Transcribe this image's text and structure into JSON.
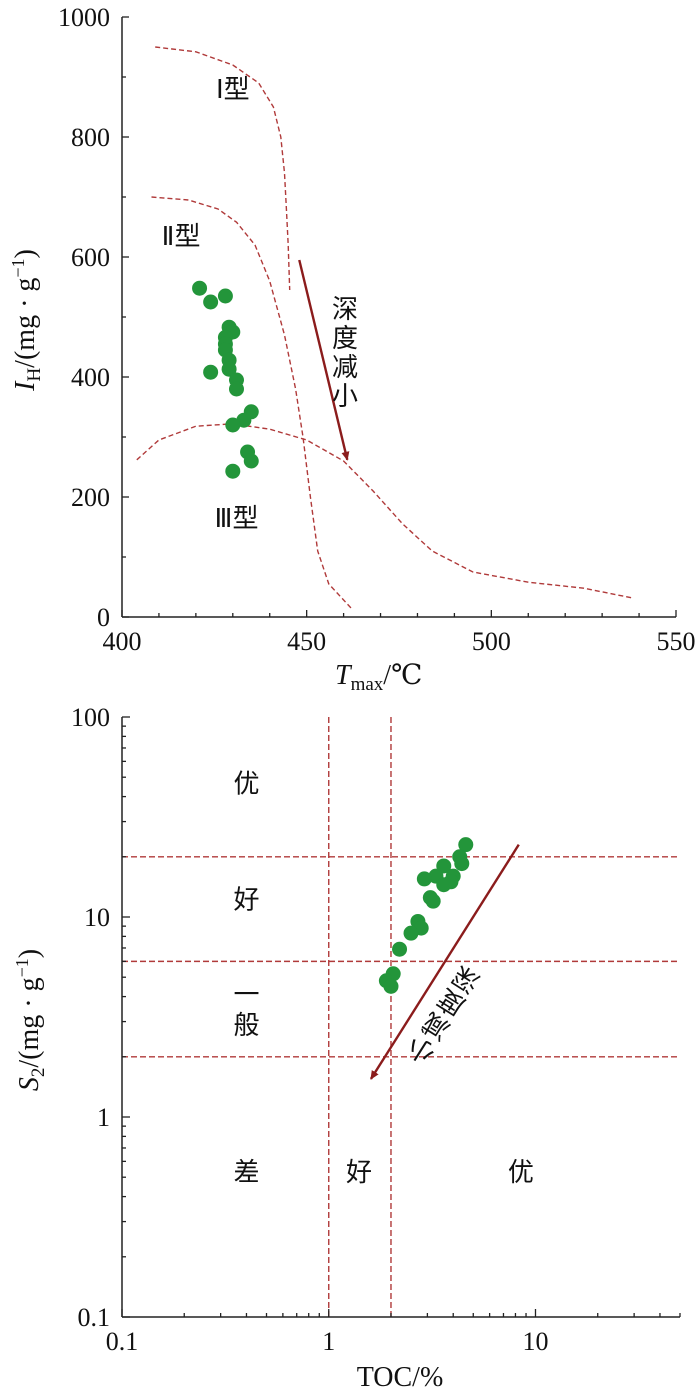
{
  "chart_data": [
    {
      "type": "scatter",
      "x_var": "T",
      "x_sub": "max",
      "x_unit": "/℃",
      "y_var": "I",
      "y_sub": "H",
      "y_unit_prefix": "/(mg · g",
      "y_unit_exp": "−1",
      "y_unit_suffix": ")",
      "xlim": [
        400,
        550
      ],
      "ylim": [
        0,
        1000
      ],
      "xticks": [
        400,
        450,
        500,
        550
      ],
      "yticks": [
        0,
        200,
        400,
        600,
        800,
        1000
      ],
      "type_labels": [
        {
          "text": "Ⅰ型",
          "x": 430,
          "y": 865
        },
        {
          "text": "Ⅱ型",
          "x": 416,
          "y": 620
        },
        {
          "text": "Ⅲ型",
          "x": 431,
          "y": 150
        }
      ],
      "arrow_text": [
        "深",
        "度",
        "减",
        "小"
      ],
      "boundary_curves": [
        [
          [
            409,
            950
          ],
          [
            420,
            942
          ],
          [
            430,
            920
          ],
          [
            437,
            890
          ],
          [
            441,
            850
          ],
          [
            443,
            800
          ],
          [
            444,
            740
          ],
          [
            444.5,
            680
          ],
          [
            445,
            620
          ],
          [
            445.4,
            545
          ]
        ],
        [
          [
            408,
            700
          ],
          [
            418,
            695
          ],
          [
            426,
            680
          ],
          [
            431,
            658
          ],
          [
            436,
            620
          ],
          [
            440,
            560
          ],
          [
            444,
            470
          ],
          [
            447,
            380
          ],
          [
            449,
            300
          ],
          [
            451,
            200
          ],
          [
            453,
            110
          ],
          [
            456,
            55
          ],
          [
            462,
            15
          ]
        ],
        [
          [
            404,
            262
          ],
          [
            410,
            295
          ],
          [
            420,
            318
          ],
          [
            430,
            322
          ],
          [
            440,
            313
          ],
          [
            450,
            295
          ],
          [
            460,
            260
          ],
          [
            468,
            210
          ],
          [
            476,
            155
          ],
          [
            484,
            110
          ],
          [
            495,
            75
          ],
          [
            510,
            58
          ],
          [
            525,
            48
          ],
          [
            538,
            32
          ]
        ]
      ],
      "direction_arrow": {
        "from": [
          448,
          595
        ],
        "to": [
          461,
          262
        ]
      },
      "points": [
        {
          "x": 421,
          "y": 548
        },
        {
          "x": 424,
          "y": 525
        },
        {
          "x": 428,
          "y": 535
        },
        {
          "x": 429,
          "y": 483
        },
        {
          "x": 430,
          "y": 475
        },
        {
          "x": 428,
          "y": 466
        },
        {
          "x": 428,
          "y": 455
        },
        {
          "x": 428,
          "y": 445
        },
        {
          "x": 429,
          "y": 428
        },
        {
          "x": 429,
          "y": 413
        },
        {
          "x": 424,
          "y": 408
        },
        {
          "x": 431,
          "y": 395
        },
        {
          "x": 431,
          "y": 380
        },
        {
          "x": 435,
          "y": 342
        },
        {
          "x": 433,
          "y": 328
        },
        {
          "x": 430,
          "y": 320
        },
        {
          "x": 434,
          "y": 275
        },
        {
          "x": 435,
          "y": 260
        },
        {
          "x": 430,
          "y": 243
        }
      ]
    },
    {
      "type": "scatter",
      "x_scale": "log",
      "y_scale": "log",
      "x_label": "TOC/%",
      "y_var": "S",
      "y_sub": "2",
      "y_unit_prefix": "/(mg · g",
      "y_unit_exp": "−1",
      "y_unit_suffix": ")",
      "xlim": [
        0.1,
        50
      ],
      "ylim": [
        0.1,
        100
      ],
      "xticks": [
        0.1,
        1,
        10
      ],
      "xtick_labels": [
        "0.1",
        "1",
        "10"
      ],
      "yticks": [
        0.1,
        1,
        10,
        100
      ],
      "ytick_labels": [
        "0.1",
        "1",
        "10",
        "100"
      ],
      "h_lines": [
        20,
        6,
        2
      ],
      "v_lines": [
        1,
        2
      ],
      "grade_y_labels": [
        {
          "text": "优",
          "x": 0.4,
          "y": 42
        },
        {
          "text": "好",
          "x": 0.4,
          "y": 11
        },
        {
          "text": "一",
          "x": 0.4,
          "y": 3.7
        },
        {
          "text": "般",
          "x": 0.4,
          "y": 2.6
        }
      ],
      "grade_x_labels": [
        {
          "text": "差",
          "x": 0.4,
          "y": 0.48
        },
        {
          "text": "好",
          "x": 1.4,
          "y": 0.48
        },
        {
          "text": "优",
          "x": 8.5,
          "y": 0.48
        }
      ],
      "arrow_text": [
        "深",
        "度",
        "减",
        "小"
      ],
      "direction_arrow": {
        "from": [
          8.3,
          23
        ],
        "to": [
          1.6,
          1.55
        ]
      },
      "points": [
        {
          "x": 4.6,
          "y": 23
        },
        {
          "x": 4.3,
          "y": 20
        },
        {
          "x": 4.4,
          "y": 18.5
        },
        {
          "x": 3.6,
          "y": 18
        },
        {
          "x": 3.3,
          "y": 16
        },
        {
          "x": 2.9,
          "y": 15.5
        },
        {
          "x": 4.0,
          "y": 16
        },
        {
          "x": 3.9,
          "y": 15
        },
        {
          "x": 3.6,
          "y": 14.5
        },
        {
          "x": 3.1,
          "y": 12.5
        },
        {
          "x": 3.2,
          "y": 12
        },
        {
          "x": 2.7,
          "y": 9.5
        },
        {
          "x": 2.8,
          "y": 8.8
        },
        {
          "x": 2.5,
          "y": 8.3
        },
        {
          "x": 2.2,
          "y": 6.9
        },
        {
          "x": 2.05,
          "y": 5.2
        },
        {
          "x": 1.9,
          "y": 4.8
        },
        {
          "x": 2.0,
          "y": 4.5
        }
      ]
    }
  ]
}
